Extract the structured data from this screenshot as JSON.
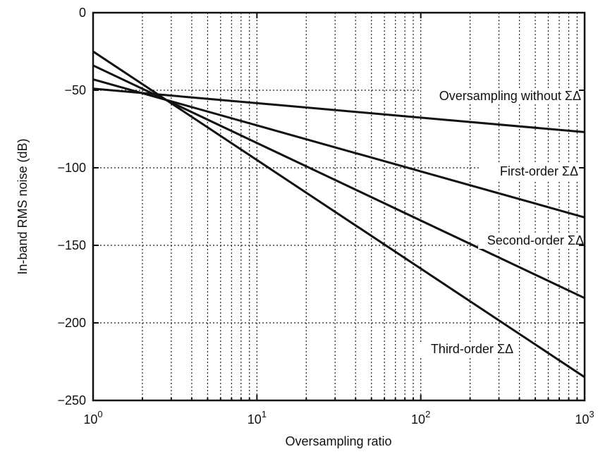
{
  "chart_data": {
    "type": "line",
    "title": "",
    "xlabel": "Oversampling ratio",
    "ylabel": "In-band RMS noise (dB)",
    "xscale": "log",
    "xlim": [
      1,
      1000
    ],
    "ylim": [
      -250,
      0
    ],
    "x_ticks": [
      {
        "value": 1,
        "base": "10",
        "exp": "0"
      },
      {
        "value": 10,
        "base": "10",
        "exp": "1"
      },
      {
        "value": 100,
        "base": "10",
        "exp": "2"
      },
      {
        "value": 1000,
        "base": "10",
        "exp": "3"
      }
    ],
    "y_ticks": [
      {
        "value": 0,
        "label": "0"
      },
      {
        "value": -50,
        "label": "−50"
      },
      {
        "value": -100,
        "label": "−100"
      },
      {
        "value": -150,
        "label": "−150"
      },
      {
        "value": -200,
        "label": "−200"
      },
      {
        "value": -250,
        "label": "−250"
      }
    ],
    "grid": "dotted, vertical at each decade subdivision, horizontal at y ticks",
    "series": [
      {
        "name": "Oversampling without ΣΔ",
        "x": [
          1,
          1000
        ],
        "y": [
          -49,
          -77
        ]
      },
      {
        "name": "First-order ΣΔ",
        "x": [
          1,
          1000
        ],
        "y": [
          -43,
          -132
        ]
      },
      {
        "name": "Second-order ΣΔ",
        "x": [
          1,
          1000
        ],
        "y": [
          -34,
          -184
        ]
      },
      {
        "name": "Third-order ΣΔ",
        "x": [
          1,
          1000
        ],
        "y": [
          -25,
          -235
        ]
      }
    ],
    "annotations": [
      {
        "text": "Oversampling without ΣΔ",
        "series": 0
      },
      {
        "text": "First-order ΣΔ",
        "series": 1
      },
      {
        "text": "Second-order ΣΔ",
        "series": 2
      },
      {
        "text": "Third-order ΣΔ",
        "series": 3
      }
    ]
  }
}
